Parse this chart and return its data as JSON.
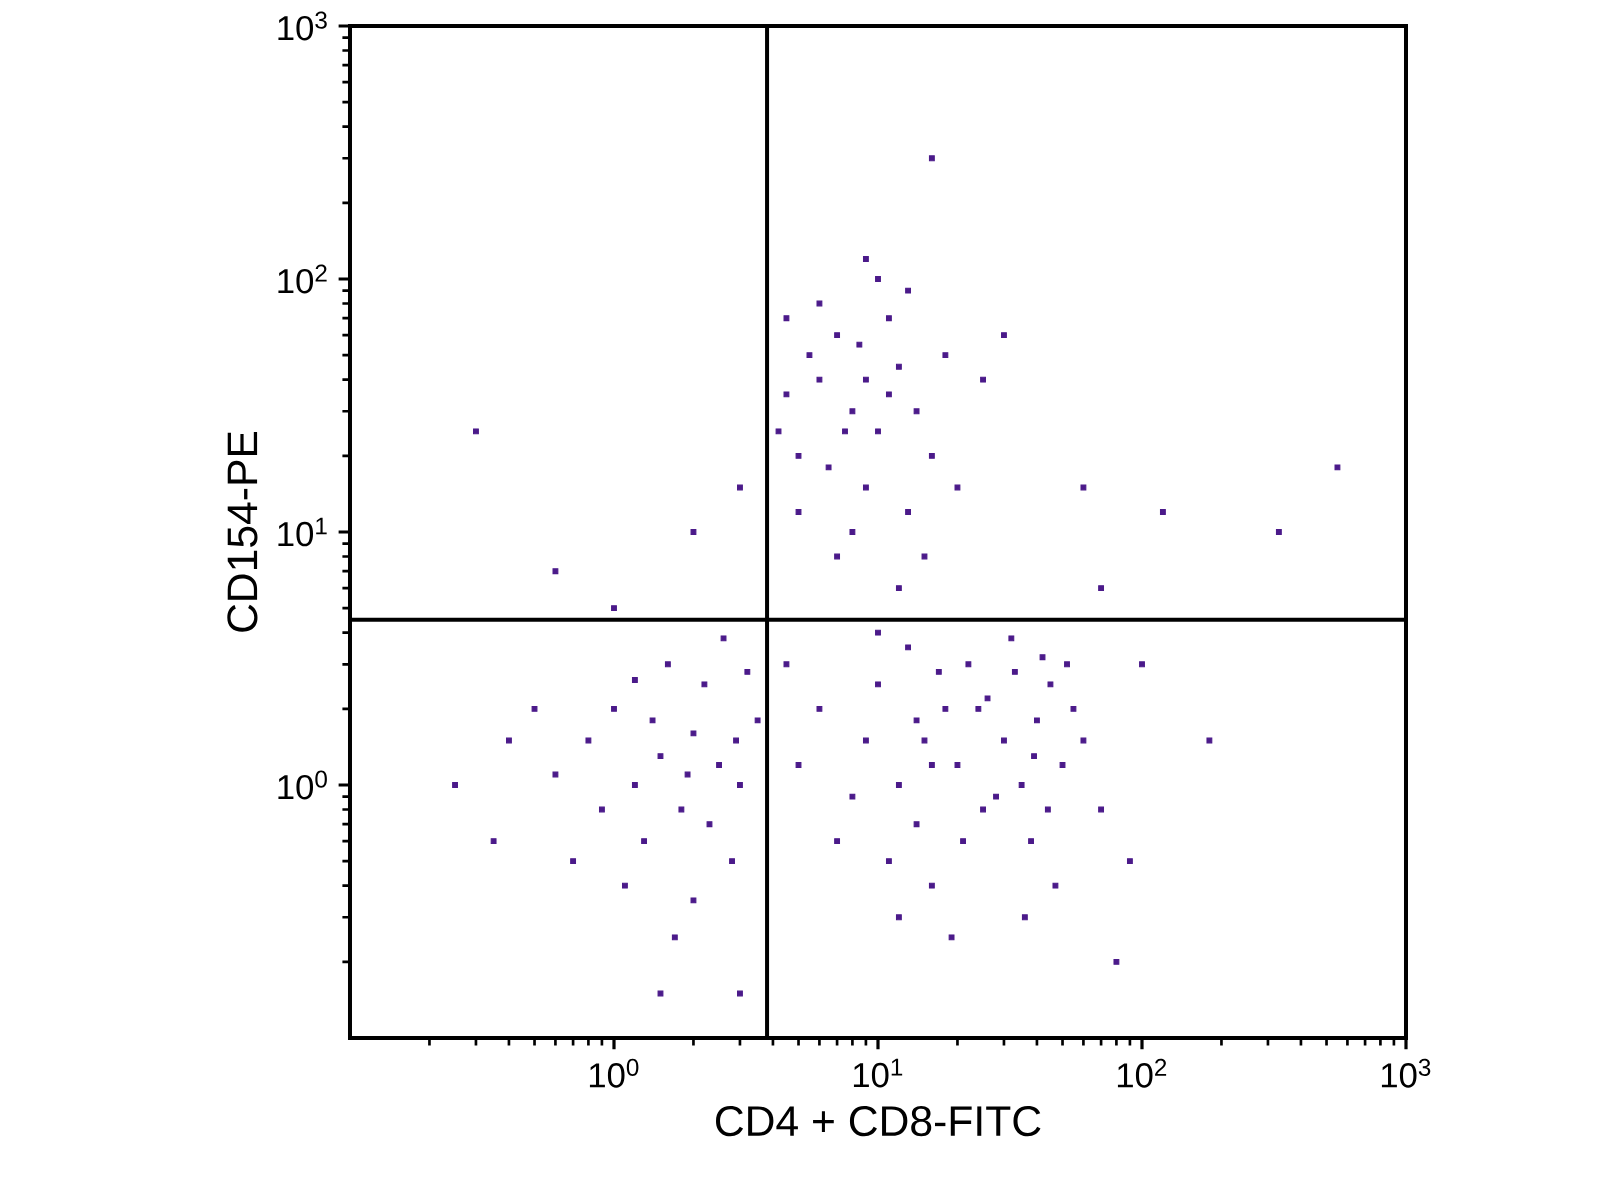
{
  "chart_data": {
    "type": "scatter",
    "xlabel": "CD4 + CD8-FITC",
    "ylabel": "CD154-PE",
    "log": "xy",
    "grid": false,
    "xlim": [
      0.1,
      1000
    ],
    "ylim": [
      0.1,
      1000
    ],
    "xticks": [
      {
        "value": 1,
        "label": "10$^{0}$"
      },
      {
        "value": 10,
        "label": "10$^{1}$"
      },
      {
        "value": 100,
        "label": "10$^{2}$"
      },
      {
        "value": 1000,
        "label": "10$^{3}$"
      }
    ],
    "yticks": [
      {
        "value": 1,
        "label": "10$^{0}$"
      },
      {
        "value": 10,
        "label": "10$^{1}$"
      },
      {
        "value": 100,
        "label": "10$^{2}$"
      },
      {
        "value": 1000,
        "label": "10$^{3}$"
      }
    ],
    "ref_lines": [
      {
        "axis": "x",
        "value": 3.8,
        "color": "#000000"
      },
      {
        "axis": "y",
        "value": 4.5,
        "color": "#000000"
      }
    ],
    "series": [
      {
        "color": "#4b1a8a",
        "x": [
          1.5,
          1.2,
          2.0,
          1.0,
          2.5,
          1.8,
          0.8,
          1.3,
          2.2,
          3.0,
          0.6,
          1.6,
          2.8,
          1.1,
          0.5,
          3.5,
          2.0,
          0.9,
          1.4,
          2.6,
          0.7,
          1.7,
          0.4,
          3.2,
          1.0,
          2.3,
          0.35,
          1.2,
          2.9,
          1.9,
          8,
          6,
          10,
          7,
          12,
          5,
          9,
          6,
          11,
          14,
          4.5,
          8,
          13,
          5.5,
          10,
          16,
          7,
          9,
          4.2,
          18,
          6.5,
          11,
          15,
          8.5,
          20,
          5,
          12,
          9,
          7.5,
          25,
          4.5,
          13,
          3,
          2,
          30,
          15,
          12,
          18,
          10,
          20,
          14,
          9,
          16,
          22,
          11,
          13,
          25,
          17,
          8,
          19,
          14,
          6,
          21,
          12,
          10,
          24,
          16,
          7,
          5,
          4.5,
          40,
          35,
          45,
          30,
          50,
          38,
          42,
          33,
          55,
          28,
          47,
          36,
          60,
          32,
          44,
          52,
          39,
          26,
          70,
          90,
          0.3,
          16,
          550,
          330,
          120,
          0.25,
          100,
          70,
          0.6,
          1.5,
          60,
          3,
          80,
          180
        ],
        "values": [
          1.3,
          1.0,
          1.6,
          2.0,
          1.2,
          0.8,
          1.5,
          0.6,
          2.5,
          1.0,
          1.1,
          3.0,
          0.5,
          0.4,
          2.0,
          1.8,
          0.35,
          0.8,
          1.8,
          3.8,
          0.5,
          0.25,
          1.5,
          2.8,
          5.0,
          0.7,
          0.6,
          2.6,
          1.5,
          1.1,
          30,
          40,
          25,
          60,
          45,
          20,
          15,
          80,
          70,
          30,
          35,
          10,
          12,
          50,
          100,
          20,
          8,
          120,
          25,
          50,
          18,
          35,
          8,
          55,
          15,
          12,
          6,
          40,
          25,
          40,
          70,
          90,
          15,
          10,
          60,
          1.5,
          1.0,
          2.0,
          2.5,
          1.2,
          0.7,
          1.5,
          0.4,
          3.0,
          0.5,
          3.5,
          0.8,
          2.8,
          0.9,
          0.25,
          1.8,
          2.0,
          0.6,
          0.3,
          4.0,
          2.0,
          1.2,
          0.6,
          1.2,
          3,
          1.8,
          1.0,
          2.5,
          1.5,
          1.2,
          0.6,
          3.2,
          2.8,
          2.0,
          0.9,
          0.4,
          0.3,
          1.5,
          3.8,
          0.8,
          3.0,
          1.3,
          2.2,
          0.8,
          0.5,
          25,
          300,
          18,
          10,
          12,
          1.0,
          3,
          6,
          7,
          0.15,
          15,
          0.15,
          0.2,
          1.5
        ]
      }
    ]
  }
}
